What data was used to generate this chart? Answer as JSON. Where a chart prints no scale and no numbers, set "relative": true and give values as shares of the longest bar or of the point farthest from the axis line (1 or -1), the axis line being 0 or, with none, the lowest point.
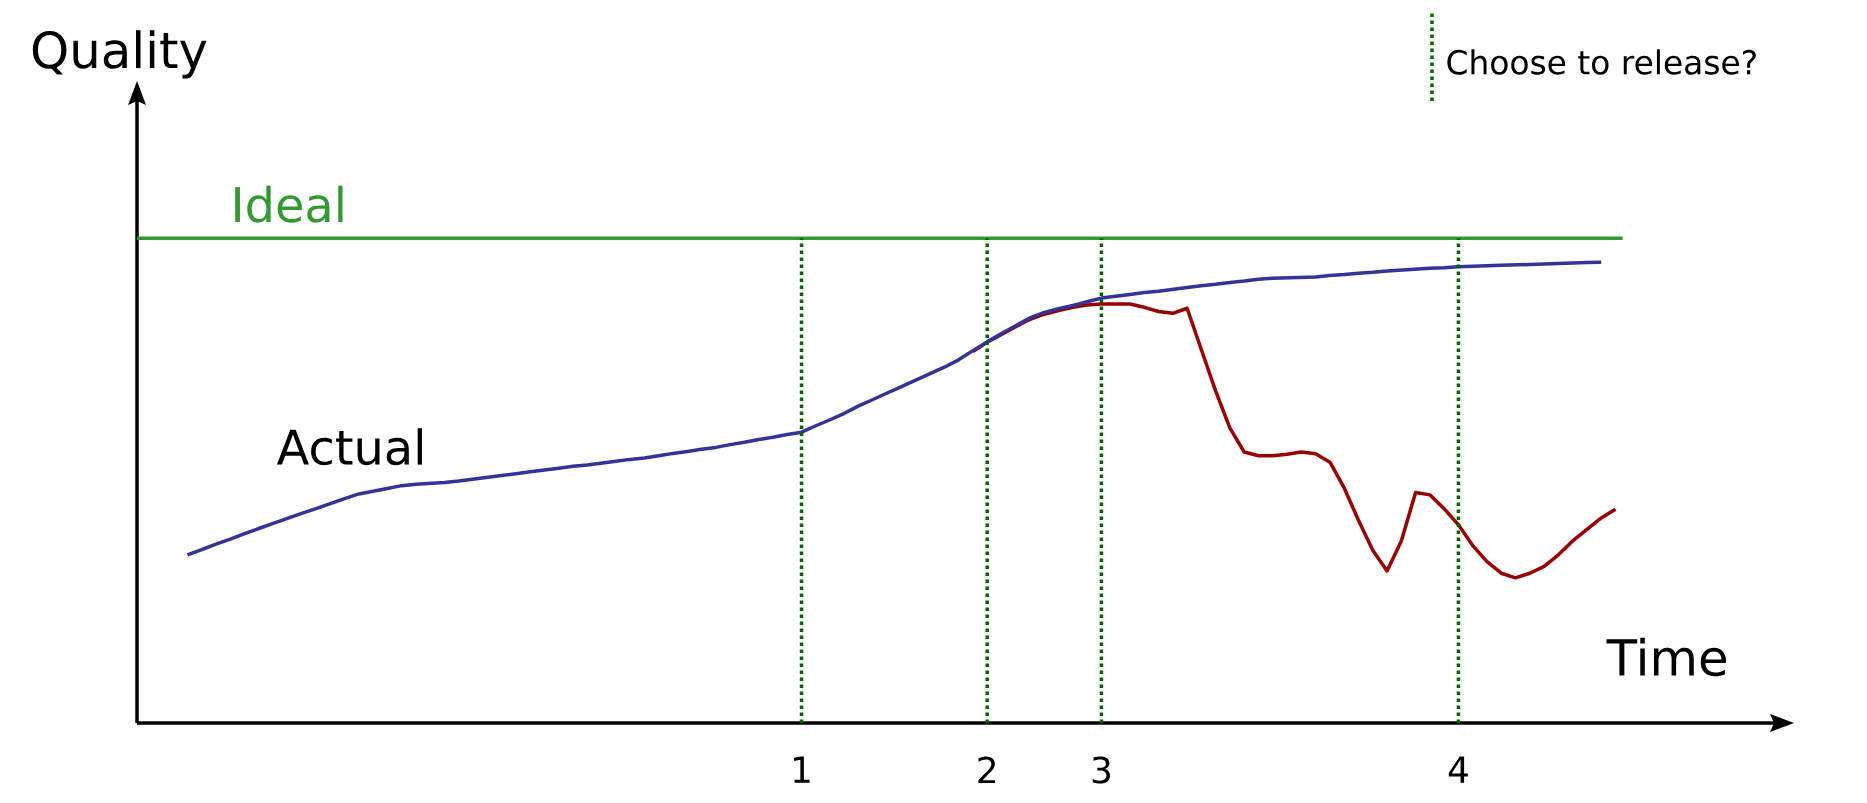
{
  "chart_data": {
    "type": "line",
    "relative": true,
    "xlabel": "Time",
    "ylabel": "Quality",
    "categories": [
      null,
      null,
      null,
      null,
      null,
      null,
      null,
      null,
      null,
      null,
      null,
      null,
      null,
      null,
      null,
      null,
      null,
      null,
      null,
      null,
      null,
      null,
      null,
      null,
      null,
      null,
      null,
      null,
      null,
      null,
      null,
      null,
      null,
      null,
      null,
      null,
      null,
      null,
      null,
      null,
      null,
      null,
      null,
      "1",
      null,
      null,
      null,
      null,
      null,
      null,
      null,
      null,
      null,
      null,
      null,
      null,
      "2",
      null,
      null,
      null,
      null,
      null,
      null,
      null,
      "3",
      null,
      null,
      null,
      null,
      null,
      null,
      null,
      null,
      null,
      null,
      null,
      null,
      null,
      null,
      null,
      null,
      null,
      null,
      null,
      null,
      null,
      null,
      null,
      null,
      "4",
      null,
      null,
      null,
      null,
      null,
      null,
      null,
      null,
      null,
      null,
      null
    ],
    "series": [
      {
        "color": "#990000",
        "values": [
          null,
          null,
          null,
          null,
          null,
          null,
          null,
          null,
          null,
          null,
          null,
          null,
          null,
          null,
          null,
          null,
          null,
          null,
          null,
          null,
          null,
          null,
          null,
          null,
          null,
          null,
          null,
          null,
          null,
          null,
          null,
          null,
          null,
          null,
          null,
          null,
          null,
          null,
          null,
          null,
          null,
          null,
          null,
          null,
          null,
          null,
          null,
          null,
          null,
          null,
          null,
          null,
          null,
          null,
          null,
          0.806,
          0.826,
          0.843,
          0.86,
          0.876,
          0.887,
          0.895,
          0.902,
          0.907,
          0.909,
          0.909,
          0.909,
          0.902,
          0.893,
          0.889,
          0.9,
          0.81,
          0.72,
          0.64,
          0.588,
          0.58,
          0.58,
          0.583,
          0.588,
          0.584,
          0.566,
          0.51,
          0.44,
          0.375,
          0.33,
          0.395,
          0.5,
          0.495,
          0.465,
          0.43,
          0.385,
          0.35,
          0.325,
          0.315,
          0.325,
          0.34,
          0.365,
          0.395,
          0.42,
          0.445,
          0.464
        ]
      },
      {
        "name": "Actual",
        "color": "#333399",
        "values": [
          0.365,
          0.376,
          0.388,
          0.399,
          0.411,
          0.422,
          0.433,
          0.444,
          0.455,
          0.465,
          0.476,
          0.487,
          0.497,
          0.503,
          0.509,
          0.515,
          0.518,
          0.52,
          0.522,
          0.525,
          0.529,
          0.533,
          0.537,
          0.541,
          0.545,
          0.549,
          0.553,
          0.557,
          0.56,
          0.564,
          0.568,
          0.572,
          0.575,
          0.58,
          0.585,
          0.589,
          0.594,
          0.598,
          0.604,
          0.609,
          0.615,
          0.62,
          0.626,
          0.631,
          0.645,
          0.658,
          0.672,
          0.688,
          0.702,
          0.716,
          0.73,
          0.744,
          0.758,
          0.772,
          0.788,
          0.808,
          0.827,
          0.845,
          0.862,
          0.879,
          0.891,
          0.899,
          0.906,
          0.914,
          0.922,
          0.926,
          0.93,
          0.934,
          0.937,
          0.941,
          0.945,
          0.949,
          0.952,
          0.956,
          0.959,
          0.963,
          0.965,
          0.966,
          0.967,
          0.968,
          0.971,
          0.973,
          0.976,
          0.978,
          0.981,
          0.983,
          0.985,
          0.987,
          0.988,
          0.99,
          0.991,
          0.992,
          0.993,
          0.994,
          0.995,
          0.996,
          0.997,
          0.998,
          0.999,
          1,
          null
        ]
      }
    ],
    "ref_lines": [
      {
        "axis": "y",
        "value": 1.052,
        "label": "Ideal",
        "color": "#339933",
        "line_style": "solid"
      },
      {
        "axis": "x",
        "value": "1",
        "color": "#006600",
        "line_style": "dotted"
      },
      {
        "axis": "x",
        "value": "2",
        "color": "#006600",
        "line_style": "dotted"
      },
      {
        "axis": "x",
        "value": "3",
        "color": "#006600",
        "line_style": "dotted"
      },
      {
        "axis": "x",
        "value": "4",
        "color": "#006600",
        "line_style": "dotted"
      }
    ],
    "annotations": [
      "Choose to release?"
    ]
  }
}
